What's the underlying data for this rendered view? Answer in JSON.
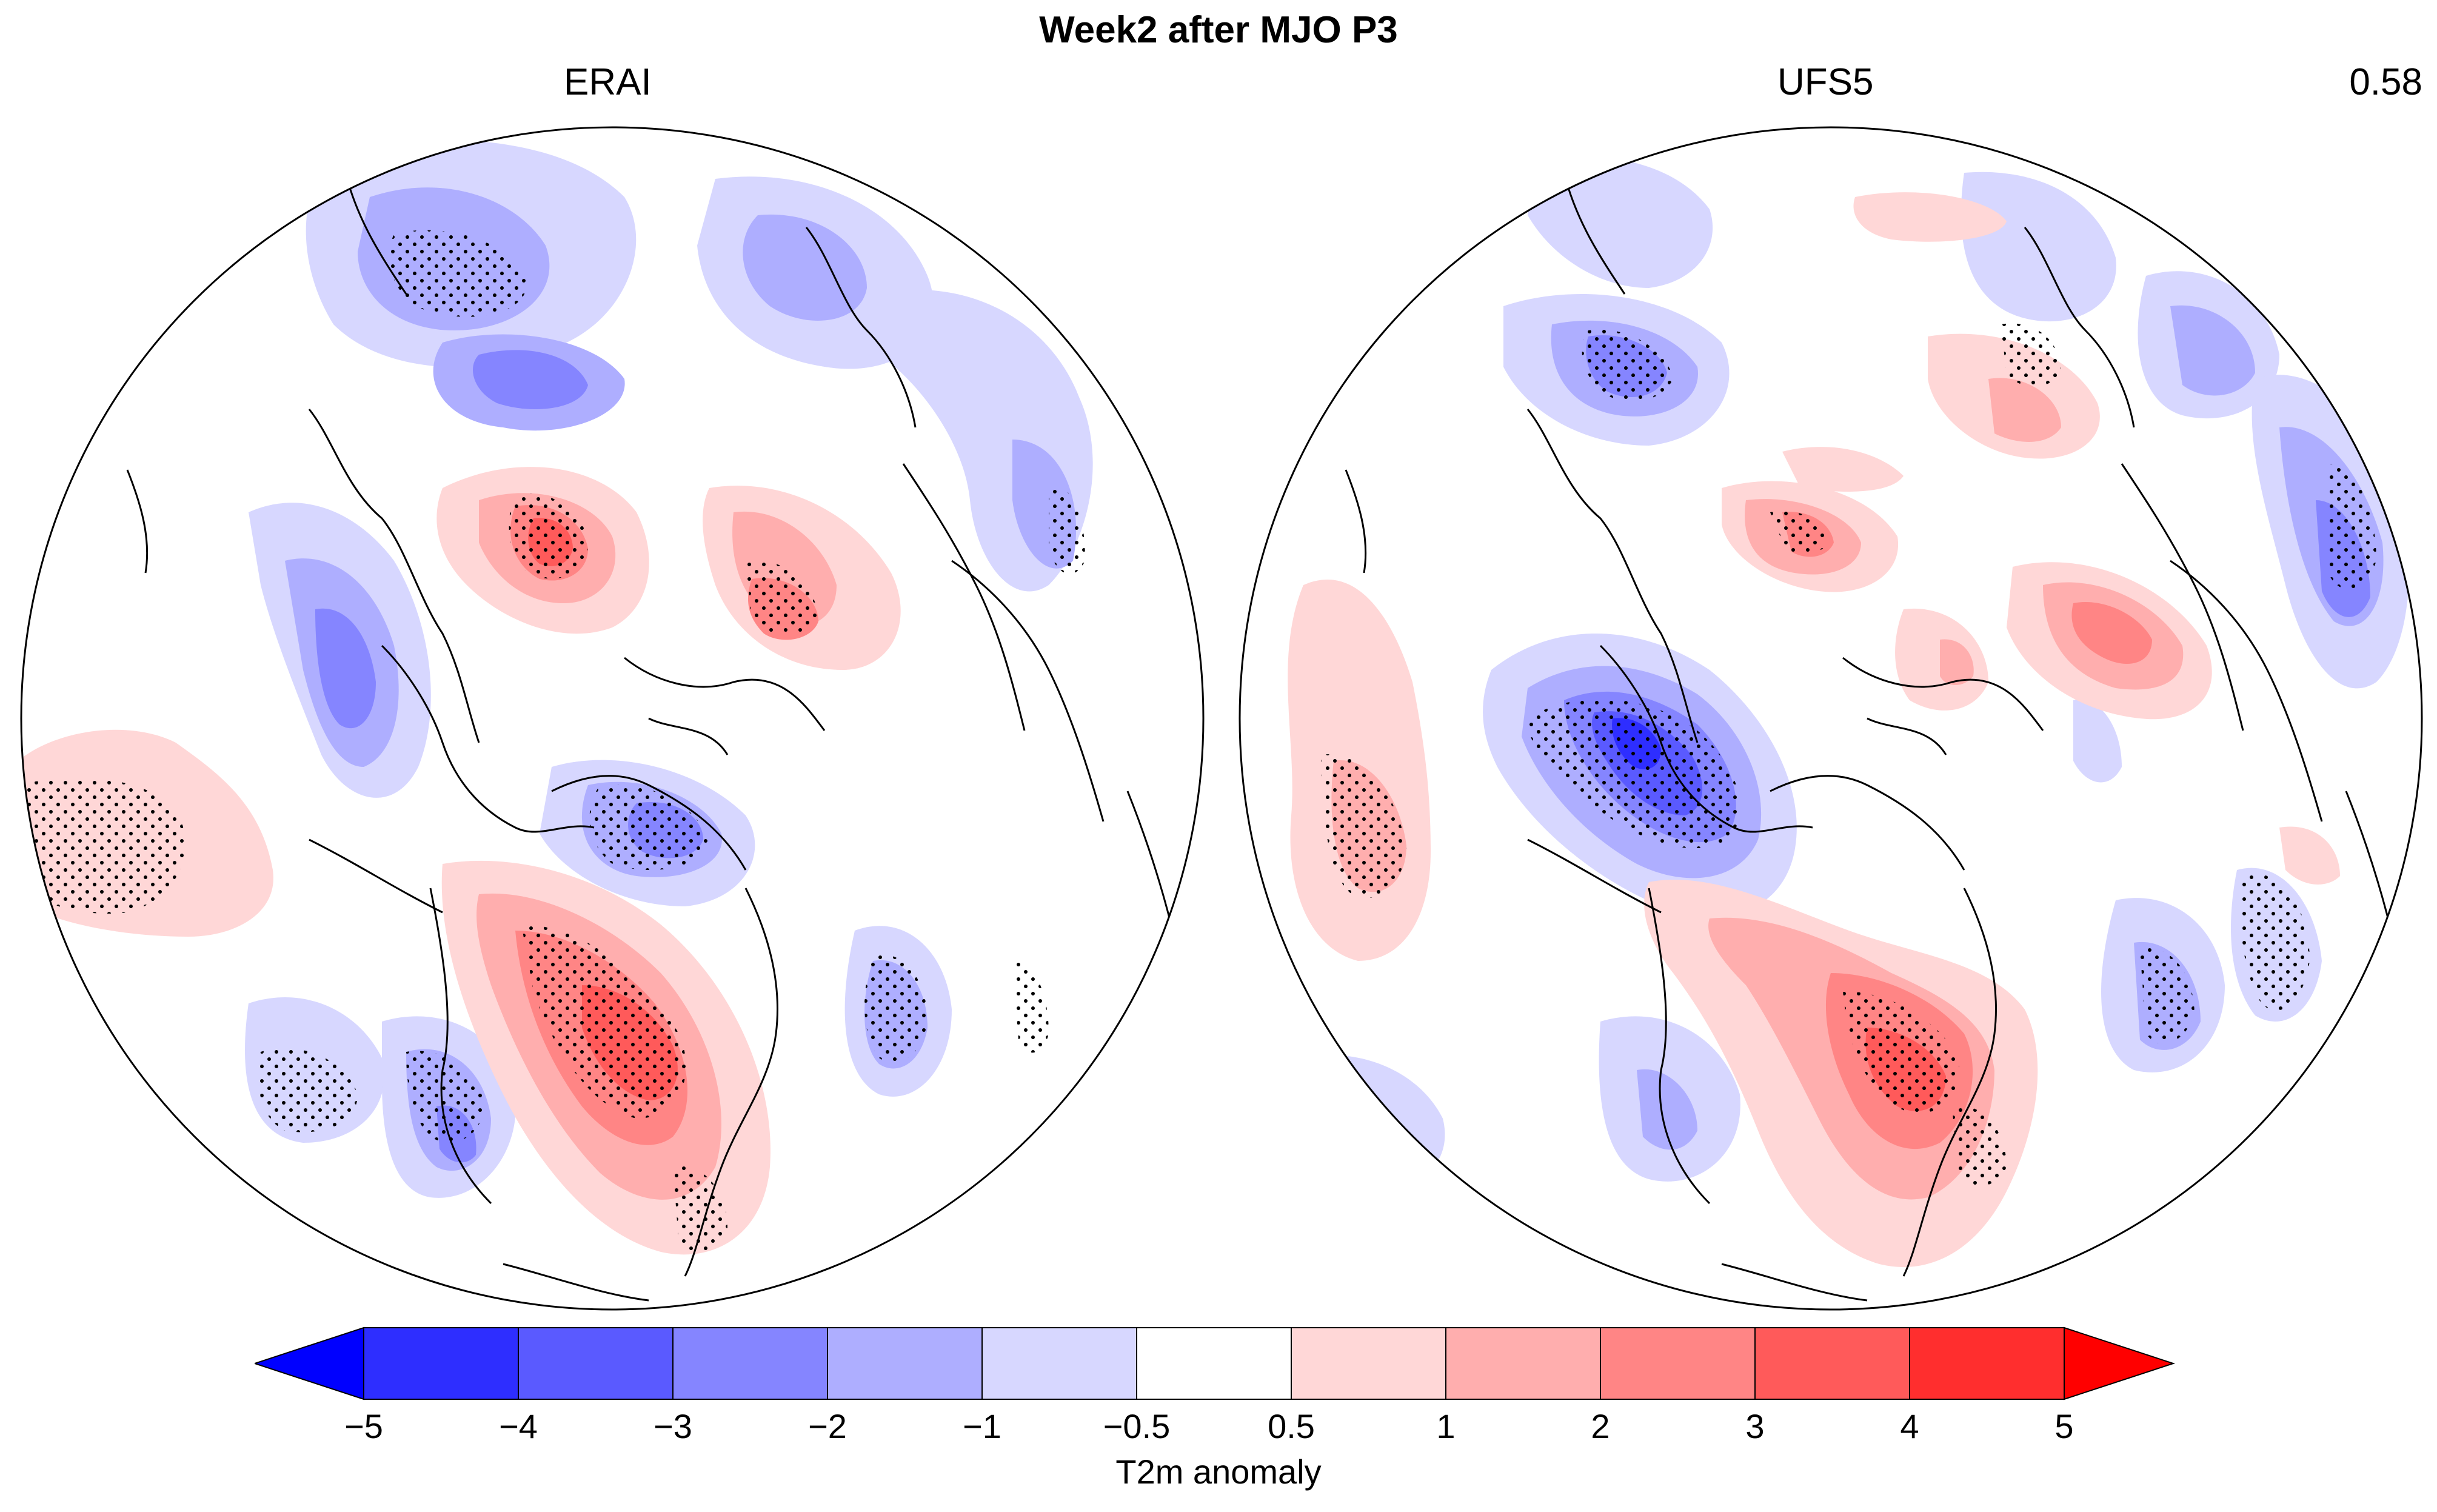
{
  "figure": {
    "title": "Week2 after MJO  P3",
    "panels": [
      {
        "name": "ERAI",
        "score": ""
      },
      {
        "name": "UFS5",
        "score": "0.58"
      }
    ]
  },
  "colorbar": {
    "title": "T2m anomaly",
    "ticks": [
      "−5",
      "−4",
      "−3",
      "−2",
      "−1",
      "−0.5",
      "0.5",
      "1",
      "2",
      "3",
      "4",
      "5"
    ],
    "colors": [
      "#0000ff",
      "#2e2eff",
      "#5a5aff",
      "#8585ff",
      "#aeaeff",
      "#d7d7ff",
      "#ffffff",
      "#ffd7d7",
      "#ffaeae",
      "#ff8585",
      "#ff5a5a",
      "#ff2e2e",
      "#ff0000"
    ]
  }
}
